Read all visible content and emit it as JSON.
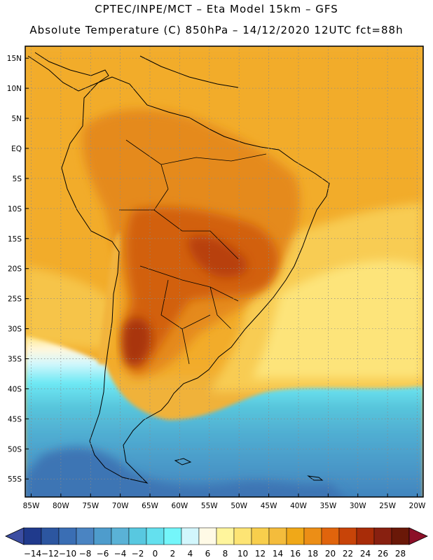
{
  "header": {
    "line1": "CPTEC/INPE/MCT –  Eta Model 15km – GFS",
    "line2": "Absolute Temperature (C) 850hPa – 14/12/2020 12UTC fct=88h"
  },
  "map": {
    "lon_range": [
      -86,
      -19
    ],
    "lat_range": [
      -58,
      17
    ],
    "lon_ticks": [
      -85,
      -80,
      -75,
      -70,
      -65,
      -60,
      -55,
      -50,
      -45,
      -40,
      -35,
      -30,
      -25,
      -20
    ],
    "lat_ticks": [
      15,
      10,
      5,
      0,
      -5,
      -10,
      -15,
      -20,
      -25,
      -30,
      -35,
      -40,
      -45,
      -50,
      -55
    ],
    "lon_labels": [
      "85W",
      "80W",
      "75W",
      "70W",
      "65W",
      "60W",
      "55W",
      "50W",
      "45W",
      "40W",
      "35W",
      "30W",
      "25W",
      "20W"
    ],
    "lat_labels": [
      "15N",
      "10N",
      "5N",
      "EQ",
      "5S",
      "10S",
      "15S",
      "20S",
      "25S",
      "30S",
      "35S",
      "40S",
      "45S",
      "50S",
      "55S"
    ]
  },
  "colorbar": {
    "labels": [
      "-14",
      "-12",
      "-10",
      "-8",
      "-6",
      "-4",
      "-2",
      "0",
      "2",
      "4",
      "6",
      "8",
      "10",
      "12",
      "14",
      "16",
      "18",
      "20",
      "22",
      "24",
      "26",
      "28"
    ],
    "colors": [
      "#203a8c",
      "#2c56a0",
      "#3a6eb4",
      "#4a84c2",
      "#4e9ccc",
      "#5ab2d6",
      "#58c8e0",
      "#64e0ee",
      "#74f6fa",
      "#d2f6fc",
      "#fffae6",
      "#fff59c",
      "#fde474",
      "#f8ce4c",
      "#f4bc3c",
      "#f0a818",
      "#ec8e16",
      "#e0640c",
      "#c84408",
      "#a82c08",
      "#882010",
      "#6a1808"
    ],
    "low_color": "#3c4ea2",
    "high_color": "#8c0f28"
  }
}
